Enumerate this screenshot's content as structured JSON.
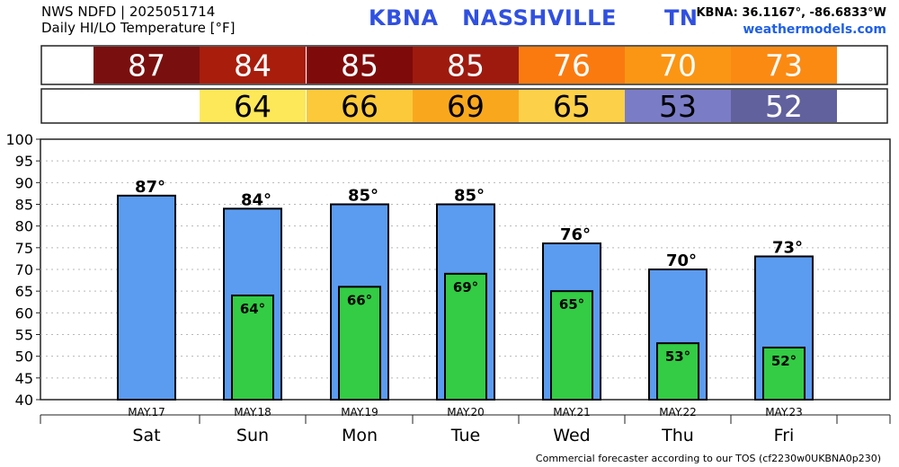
{
  "header": {
    "line1": "NWS NDFD | 2025051714",
    "line2": "Daily HI/LO Temperature [°F]",
    "station": "KBNA   NASSHVILLE      TN",
    "coords": "KBNA: 36.1167°, -86.6833°W",
    "site": "weathermodels.com"
  },
  "footer": "Commercial forecaster according to our TOS (cf2230w0UKBNA0p230)",
  "colors": {
    "hi_bar": "#5b9bf0",
    "lo_bar": "#33cc44",
    "hi_strip": [
      "#7a0f0f",
      "#a81d0c",
      "#7f0a0a",
      "#9e1a0e",
      "#fa7a10",
      "#fb9614",
      "#fb8a13"
    ],
    "lo_strip": [
      "#fde85a",
      "#fbc93a",
      "#f9a81e",
      "#fcd049",
      "#7b7cc6",
      "#61619e"
    ]
  },
  "chart_data": {
    "type": "bar",
    "categories": [
      "Sat",
      "Sun",
      "Mon",
      "Tue",
      "Wed",
      "Thu",
      "Fri"
    ],
    "dates": [
      "MAY.17",
      "MAY.18",
      "MAY.19",
      "MAY.20",
      "MAY.21",
      "MAY.22",
      "MAY.23"
    ],
    "series": [
      {
        "name": "HI",
        "values": [
          87,
          84,
          85,
          85,
          76,
          70,
          73
        ]
      },
      {
        "name": "LO",
        "values": [
          null,
          64,
          66,
          69,
          65,
          53,
          52
        ]
      }
    ],
    "ylim": [
      40,
      100
    ],
    "yticks": [
      40,
      45,
      50,
      55,
      60,
      65,
      70,
      75,
      80,
      85,
      90,
      95,
      100
    ],
    "grid": true,
    "legend": "none",
    "hi_labels": [
      "87°",
      "84°",
      "85°",
      "85°",
      "76°",
      "70°",
      "73°"
    ],
    "lo_labels": [
      "",
      "64°",
      "66°",
      "69°",
      "65°",
      "53°",
      "52°"
    ],
    "hi_strip": [
      "87",
      "84",
      "85",
      "85",
      "76",
      "70",
      "73"
    ],
    "lo_strip": [
      "",
      "64",
      "66",
      "69",
      "65",
      "53",
      "52"
    ]
  }
}
